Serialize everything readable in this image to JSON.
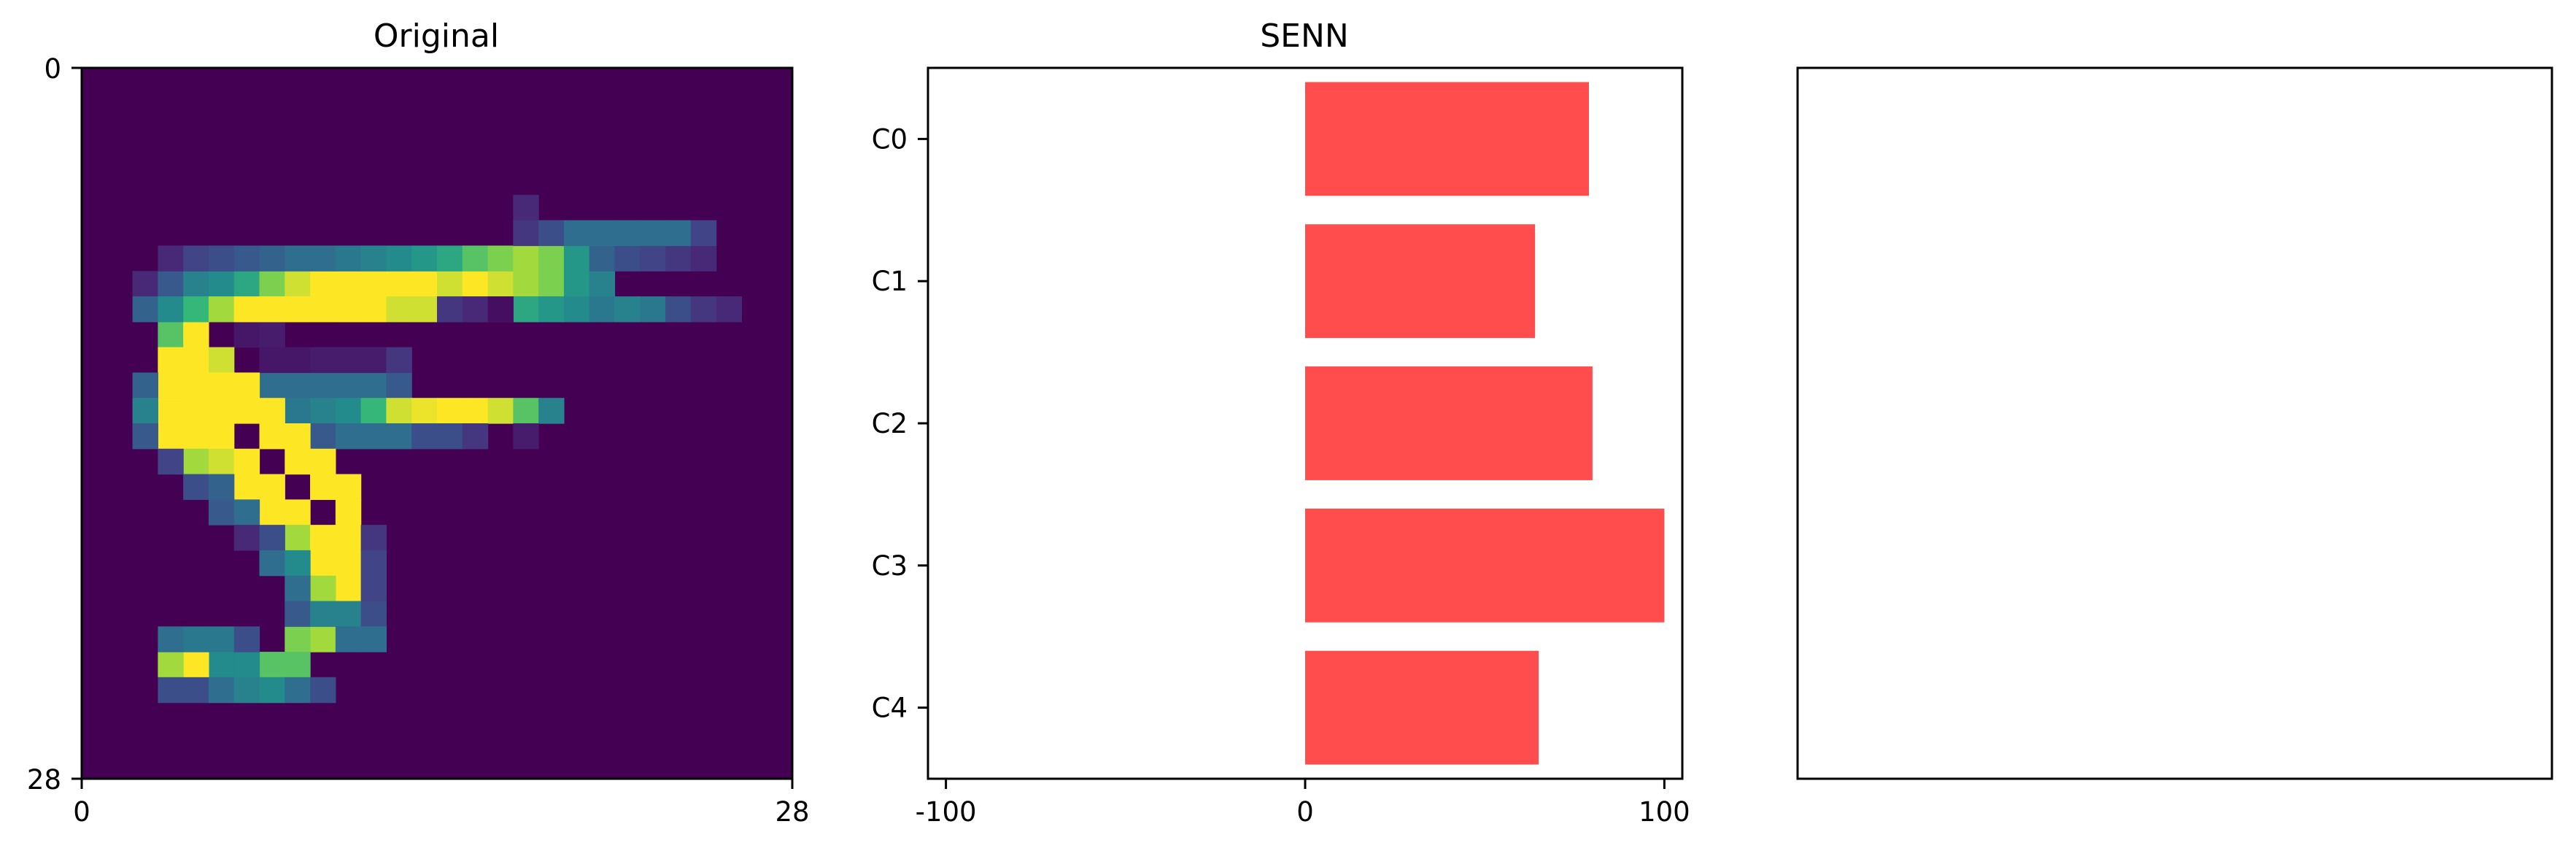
{
  "chart_data": [
    {
      "type": "heatmap",
      "title": "Original",
      "colormap": "viridis",
      "shape": [
        28,
        28
      ],
      "x_ticks": [
        "0",
        "28"
      ],
      "y_ticks": [
        "0",
        "28"
      ],
      "xlim": [
        0,
        28
      ],
      "ylim": [
        0,
        28
      ],
      "grid": false,
      "pixels": [
        [
          5,
          12,
          0.35
        ],
        [
          6,
          12,
          0.45
        ],
        [
          7,
          12,
          0.45
        ],
        [
          8,
          12,
          0.45
        ],
        [
          9,
          12,
          0.45
        ],
        [
          10,
          12,
          0.45
        ],
        [
          11,
          12,
          0.45
        ],
        [
          12,
          12,
          0.35
        ],
        [
          6,
          10,
          0.08
        ],
        [
          7,
          10,
          0.1
        ],
        [
          7,
          11,
          0.08
        ],
        [
          8,
          11,
          0.08
        ],
        [
          9,
          11,
          0.1
        ],
        [
          10,
          11,
          0.1
        ],
        [
          11,
          11,
          0.1
        ],
        [
          12,
          11,
          0.2
        ],
        [
          6,
          13,
          0.2
        ],
        [
          7,
          13,
          0.2
        ],
        [
          8,
          13,
          0.5
        ],
        [
          9,
          13,
          0.55
        ],
        [
          10,
          13,
          0.6
        ],
        [
          11,
          13,
          0.75
        ],
        [
          12,
          13,
          0.95
        ],
        [
          13,
          13,
          0.98
        ],
        [
          14,
          13,
          1.0
        ],
        [
          15,
          13,
          1.0
        ],
        [
          16,
          13,
          0.95
        ],
        [
          17,
          13,
          0.8
        ],
        [
          18,
          13,
          0.55
        ],
        [
          7,
          14,
          0.1
        ],
        [
          8,
          14,
          0.2
        ],
        [
          9,
          14,
          0.35
        ],
        [
          10,
          14,
          0.45
        ],
        [
          11,
          14,
          0.45
        ],
        [
          12,
          14,
          0.45
        ],
        [
          13,
          14,
          0.3
        ],
        [
          14,
          14,
          0.3
        ],
        [
          15,
          14,
          0.2
        ],
        [
          17,
          14,
          0.1
        ],
        [
          6,
          9,
          0.3
        ],
        [
          7,
          9,
          0.5
        ],
        [
          8,
          9,
          0.85
        ],
        [
          9,
          9,
          0.8
        ],
        [
          10,
          9,
          0.6
        ],
        [
          11,
          9,
          0.35
        ],
        [
          12,
          9,
          0.1
        ],
        [
          13,
          9,
          0.08
        ],
        [
          14,
          9,
          0.05
        ],
        [
          15,
          9,
          0.08
        ],
        [
          17,
          5,
          0.15
        ],
        [
          17,
          6,
          0.15
        ],
        [
          18,
          6,
          0.15
        ],
        [
          17,
          7,
          0.45
        ],
        [
          18,
          7,
          0.45
        ],
        [
          3,
          10,
          0.8
        ],
        [
          4,
          10,
          1.0
        ],
        [
          4,
          11,
          1.0
        ],
        [
          5,
          11,
          0.95
        ],
        [
          5,
          12,
          1.0
        ],
        [
          6,
          12,
          1.0
        ],
        [
          6,
          13,
          1.0
        ],
        [
          7,
          13,
          1.0
        ],
        [
          7,
          14,
          1.0
        ],
        [
          8,
          14,
          1.0
        ],
        [
          8,
          15,
          1.0
        ],
        [
          9,
          15,
          1.0
        ],
        [
          9,
          16,
          1.0
        ],
        [
          10,
          16,
          1.0
        ],
        [
          10,
          17,
          1.0
        ],
        [
          10,
          18,
          1.0
        ],
        [
          10,
          19,
          1.0
        ],
        [
          10,
          20,
          1.0
        ],
        [
          9,
          21,
          1.0
        ],
        [
          9,
          22,
          0.9
        ],
        [
          8,
          22,
          0.85
        ],
        [
          8,
          23,
          0.8
        ],
        [
          7,
          23,
          0.8
        ],
        [
          6,
          23,
          0.6
        ],
        [
          5,
          23,
          0.6
        ],
        [
          4,
          23,
          1.0
        ],
        [
          3,
          23,
          0.9
        ],
        [
          3,
          24,
          0.3
        ],
        [
          4,
          24,
          0.3
        ],
        [
          5,
          24,
          0.45
        ],
        [
          6,
          24,
          0.55
        ],
        [
          7,
          24,
          0.6
        ],
        [
          8,
          24,
          0.45
        ],
        [
          9,
          24,
          0.3
        ],
        [
          3,
          22,
          0.45
        ],
        [
          4,
          22,
          0.5
        ],
        [
          5,
          22,
          0.5
        ],
        [
          6,
          22,
          0.3
        ],
        [
          3,
          11,
          1.0
        ],
        [
          3,
          12,
          1.0
        ],
        [
          3,
          13,
          0.95
        ],
        [
          3,
          14,
          1.0
        ],
        [
          4,
          12,
          1.0
        ],
        [
          4,
          13,
          1.0
        ],
        [
          4,
          14,
          1.0
        ],
        [
          5,
          13,
          1.0
        ],
        [
          5,
          14,
          1.0
        ],
        [
          4,
          15,
          0.9
        ],
        [
          5,
          15,
          0.95
        ],
        [
          6,
          15,
          1.0
        ],
        [
          6,
          16,
          1.0
        ],
        [
          7,
          16,
          1.0
        ],
        [
          7,
          17,
          1.0
        ],
        [
          8,
          17,
          1.0
        ],
        [
          8,
          18,
          0.9
        ],
        [
          9,
          18,
          1.0
        ],
        [
          9,
          19,
          1.0
        ],
        [
          9,
          20,
          0.9
        ],
        [
          2,
          8,
          0.15
        ],
        [
          3,
          8,
          0.35
        ],
        [
          4,
          8,
          0.55
        ],
        [
          5,
          8,
          0.6
        ],
        [
          6,
          8,
          0.7
        ],
        [
          7,
          8,
          0.85
        ],
        [
          8,
          8,
          0.95
        ],
        [
          9,
          8,
          1.0
        ],
        [
          10,
          8,
          1.0
        ],
        [
          11,
          8,
          1.0
        ],
        [
          12,
          8,
          1.0
        ],
        [
          13,
          8,
          1.0
        ],
        [
          14,
          8,
          0.95
        ],
        [
          15,
          8,
          1.0
        ],
        [
          16,
          8,
          0.95
        ],
        [
          17,
          8,
          0.9
        ],
        [
          18,
          8,
          0.85
        ],
        [
          19,
          8,
          0.65
        ],
        [
          20,
          8,
          0.55
        ],
        [
          2,
          9,
          0.4
        ],
        [
          3,
          9,
          0.6
        ],
        [
          4,
          9,
          0.75
        ],
        [
          5,
          9,
          0.9
        ],
        [
          6,
          9,
          1.0
        ],
        [
          7,
          9,
          1.0
        ],
        [
          8,
          9,
          1.0
        ],
        [
          9,
          9,
          1.0
        ],
        [
          10,
          9,
          1.0
        ],
        [
          11,
          9,
          1.0
        ],
        [
          12,
          9,
          0.95
        ],
        [
          13,
          9,
          0.95
        ],
        [
          14,
          9,
          0.9
        ],
        [
          15,
          9,
          0.85
        ],
        [
          16,
          9,
          0.8
        ],
        [
          17,
          9,
          0.7
        ],
        [
          18,
          9,
          0.65
        ],
        [
          19,
          9,
          0.6
        ],
        [
          20,
          9,
          0.5
        ],
        [
          21,
          9,
          0.55
        ],
        [
          22,
          9,
          0.5
        ],
        [
          23,
          9,
          0.3
        ],
        [
          24,
          9,
          0.2
        ],
        [
          25,
          9,
          0.15
        ],
        [
          3,
          7,
          0.15
        ],
        [
          4,
          7,
          0.25
        ],
        [
          5,
          7,
          0.3
        ],
        [
          6,
          7,
          0.35
        ],
        [
          7,
          7,
          0.4
        ],
        [
          8,
          7,
          0.45
        ],
        [
          9,
          7,
          0.45
        ],
        [
          10,
          7,
          0.5
        ],
        [
          11,
          7,
          0.55
        ],
        [
          12,
          7,
          0.6
        ],
        [
          13,
          7,
          0.65
        ],
        [
          14,
          7,
          0.7
        ],
        [
          15,
          7,
          0.8
        ],
        [
          16,
          7,
          0.85
        ],
        [
          17,
          7,
          0.9
        ],
        [
          18,
          7,
          0.85
        ],
        [
          19,
          7,
          0.65
        ],
        [
          20,
          7,
          0.4
        ],
        [
          21,
          7,
          0.3
        ],
        [
          22,
          7,
          0.25
        ],
        [
          23,
          7,
          0.2
        ],
        [
          24,
          7,
          0.15
        ],
        [
          17,
          6,
          0.2
        ],
        [
          18,
          6,
          0.3
        ],
        [
          19,
          6,
          0.45
        ],
        [
          20,
          6,
          0.45
        ],
        [
          21,
          6,
          0.45
        ],
        [
          22,
          6,
          0.45
        ],
        [
          23,
          6,
          0.45
        ],
        [
          24,
          6,
          0.25
        ],
        [
          14,
          9,
          0.2
        ],
        [
          15,
          9,
          0.15
        ],
        [
          16,
          9,
          0.05
        ],
        [
          3,
          13,
          1.0
        ],
        [
          2,
          12,
          0.4
        ],
        [
          2,
          13,
          0.55
        ],
        [
          2,
          14,
          0.35
        ],
        [
          3,
          15,
          0.25
        ],
        [
          4,
          16,
          0.3
        ],
        [
          5,
          16,
          0.4
        ],
        [
          5,
          17,
          0.35
        ],
        [
          6,
          17,
          0.45
        ],
        [
          6,
          18,
          0.15
        ],
        [
          7,
          18,
          0.3
        ],
        [
          7,
          19,
          0.45
        ],
        [
          8,
          19,
          0.6
        ],
        [
          8,
          20,
          0.45
        ],
        [
          8,
          21,
          0.35
        ],
        [
          9,
          21,
          0.55
        ],
        [
          10,
          21,
          0.55
        ],
        [
          11,
          21,
          0.3
        ],
        [
          10,
          22,
          0.45
        ],
        [
          11,
          22,
          0.45
        ],
        [
          11,
          18,
          0.2
        ],
        [
          11,
          19,
          0.25
        ],
        [
          11,
          20,
          0.25
        ]
      ]
    },
    {
      "type": "bar",
      "orientation": "horizontal",
      "title": "SENN",
      "categories": [
        "C0",
        "C1",
        "C2",
        "C3",
        "C4"
      ],
      "values": [
        79,
        64,
        80,
        100,
        65
      ],
      "xlim": [
        -105,
        105
      ],
      "x_ticks": [
        "-100",
        "0",
        "100"
      ],
      "x_tick_values": [
        -100,
        0,
        100
      ],
      "bar_color": "#ff4d4d",
      "grid": false
    },
    {
      "type": "bar",
      "title": "",
      "categories": [],
      "values": [],
      "grid": false
    }
  ]
}
